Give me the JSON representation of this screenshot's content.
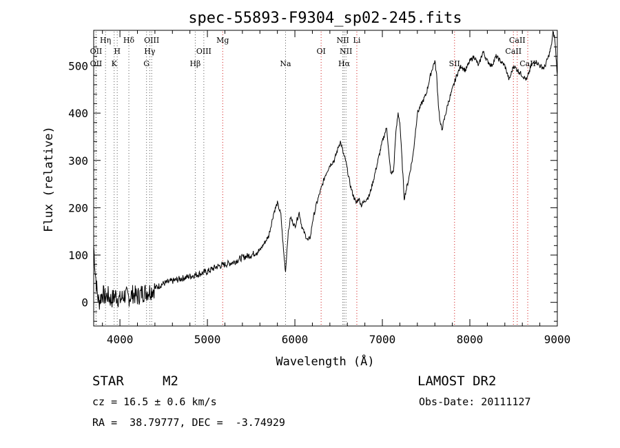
{
  "chart_data": {
    "type": "line",
    "title": "spec-55893-F9304_sp02-245.fits",
    "xlabel": "Wavelength (Å)",
    "ylabel": "Flux (relative)",
    "xlim": [
      3700,
      9000
    ],
    "ylim": [
      -50,
      575
    ],
    "x_ticks": [
      4000,
      5000,
      6000,
      7000,
      8000,
      9000
    ],
    "y_ticks": [
      0,
      100,
      200,
      300,
      400,
      500
    ],
    "grid": false,
    "series": [
      {
        "x": [
          3700,
          3720,
          3740,
          3760,
          3780,
          3800,
          3830,
          3860,
          3900,
          3950,
          4000,
          4050,
          4100,
          4150,
          4200,
          4250,
          4300,
          4350,
          4400,
          4500,
          4600,
          4700,
          4800,
          4900,
          5000,
          5100,
          5200,
          5300,
          5400,
          5500,
          5600,
          5700,
          5760,
          5800,
          5840,
          5870,
          5893,
          5920,
          5950,
          6000,
          6050,
          6080,
          6100,
          6150,
          6180,
          6200,
          6250,
          6300,
          6350,
          6400,
          6450,
          6500,
          6520,
          6540,
          6560,
          6580,
          6600,
          6630,
          6660,
          6700,
          6730,
          6760,
          6800,
          6850,
          6900,
          6950,
          7000,
          7050,
          7080,
          7100,
          7130,
          7150,
          7180,
          7200,
          7250,
          7300,
          7350,
          7400,
          7450,
          7500,
          7550,
          7580,
          7600,
          7620,
          7640,
          7660,
          7680,
          7700,
          7750,
          7800,
          7850,
          7900,
          7950,
          8000,
          8050,
          8100,
          8150,
          8200,
          8250,
          8300,
          8350,
          8400,
          8450,
          8500,
          8550,
          8600,
          8650,
          8700,
          8750,
          8800,
          8850,
          8900,
          8930,
          8950,
          8970,
          9000
        ],
        "y": [
          120,
          60,
          20,
          0,
          10,
          20,
          10,
          15,
          5,
          15,
          5,
          15,
          10,
          18,
          12,
          20,
          22,
          25,
          30,
          40,
          45,
          50,
          55,
          60,
          65,
          75,
          80,
          85,
          95,
          100,
          110,
          140,
          190,
          210,
          185,
          110,
          65,
          140,
          180,
          160,
          190,
          160,
          150,
          130,
          140,
          170,
          210,
          240,
          270,
          290,
          300,
          330,
          340,
          325,
          310,
          300,
          280,
          250,
          230,
          210,
          220,
          205,
          215,
          225,
          260,
          300,
          340,
          370,
          300,
          270,
          280,
          350,
          400,
          380,
          220,
          260,
          310,
          400,
          420,
          440,
          480,
          500,
          510,
          480,
          420,
          380,
          365,
          380,
          420,
          450,
          480,
          500,
          490,
          510,
          520,
          500,
          530,
          510,
          500,
          520,
          510,
          500,
          470,
          500,
          490,
          480,
          470,
          500,
          510,
          500,
          495,
          520,
          540,
          570,
          560,
          480
        ]
      }
    ],
    "lines": [
      {
        "label": "OII",
        "x": 3727,
        "color": "black",
        "row": 2
      },
      {
        "label": "OII",
        "x": 3727,
        "color": "black",
        "row": 3
      },
      {
        "label": "Hη",
        "x": 3835,
        "color": "black",
        "row": 1
      },
      {
        "label": "H",
        "x": 3969,
        "color": "black",
        "row": 2
      },
      {
        "label": "K",
        "x": 3934,
        "color": "black",
        "row": 3
      },
      {
        "label": "Hδ",
        "x": 4102,
        "color": "black",
        "row": 1
      },
      {
        "label": "OIII",
        "x": 4363,
        "color": "black",
        "row": 1
      },
      {
        "label": "Hγ",
        "x": 4341,
        "color": "black",
        "row": 2
      },
      {
        "label": "G",
        "x": 4304,
        "color": "black",
        "row": 3
      },
      {
        "label": "OIII",
        "x": 4959,
        "color": "black",
        "row": 2
      },
      {
        "label": "Hβ",
        "x": 4861,
        "color": "black",
        "row": 3
      },
      {
        "label": "Mg",
        "x": 5175,
        "color": "red",
        "row": 1
      },
      {
        "label": "Na",
        "x": 5893,
        "color": "black",
        "row": 3
      },
      {
        "label": "OI",
        "x": 6300,
        "color": "red",
        "row": 2
      },
      {
        "label": "NII",
        "x": 6548,
        "color": "black",
        "row": 1
      },
      {
        "label": "Li",
        "x": 6708,
        "color": "red",
        "row": 1
      },
      {
        "label": "NII",
        "x": 6584,
        "color": "black",
        "row": 2
      },
      {
        "label": "Hα",
        "x": 6563,
        "color": "black",
        "row": 3
      },
      {
        "label": "SII",
        "x": 7825,
        "color": "red",
        "row": 3
      },
      {
        "label": "CaII",
        "x": 8542,
        "color": "red",
        "row": 1
      },
      {
        "label": "CaII",
        "x": 8498,
        "color": "red",
        "row": 2
      },
      {
        "label": "CaII",
        "x": 8662,
        "color": "red",
        "row": 3
      }
    ]
  },
  "info": {
    "class_label": "STAR",
    "subclass": "M2",
    "survey": "LAMOST DR2",
    "redshift": "cz = 16.5 ± 0.6 km/s",
    "obs_date": "Obs-Date: 20111127",
    "coords": "RA =  38.79777, DEC =  -3.74929"
  }
}
